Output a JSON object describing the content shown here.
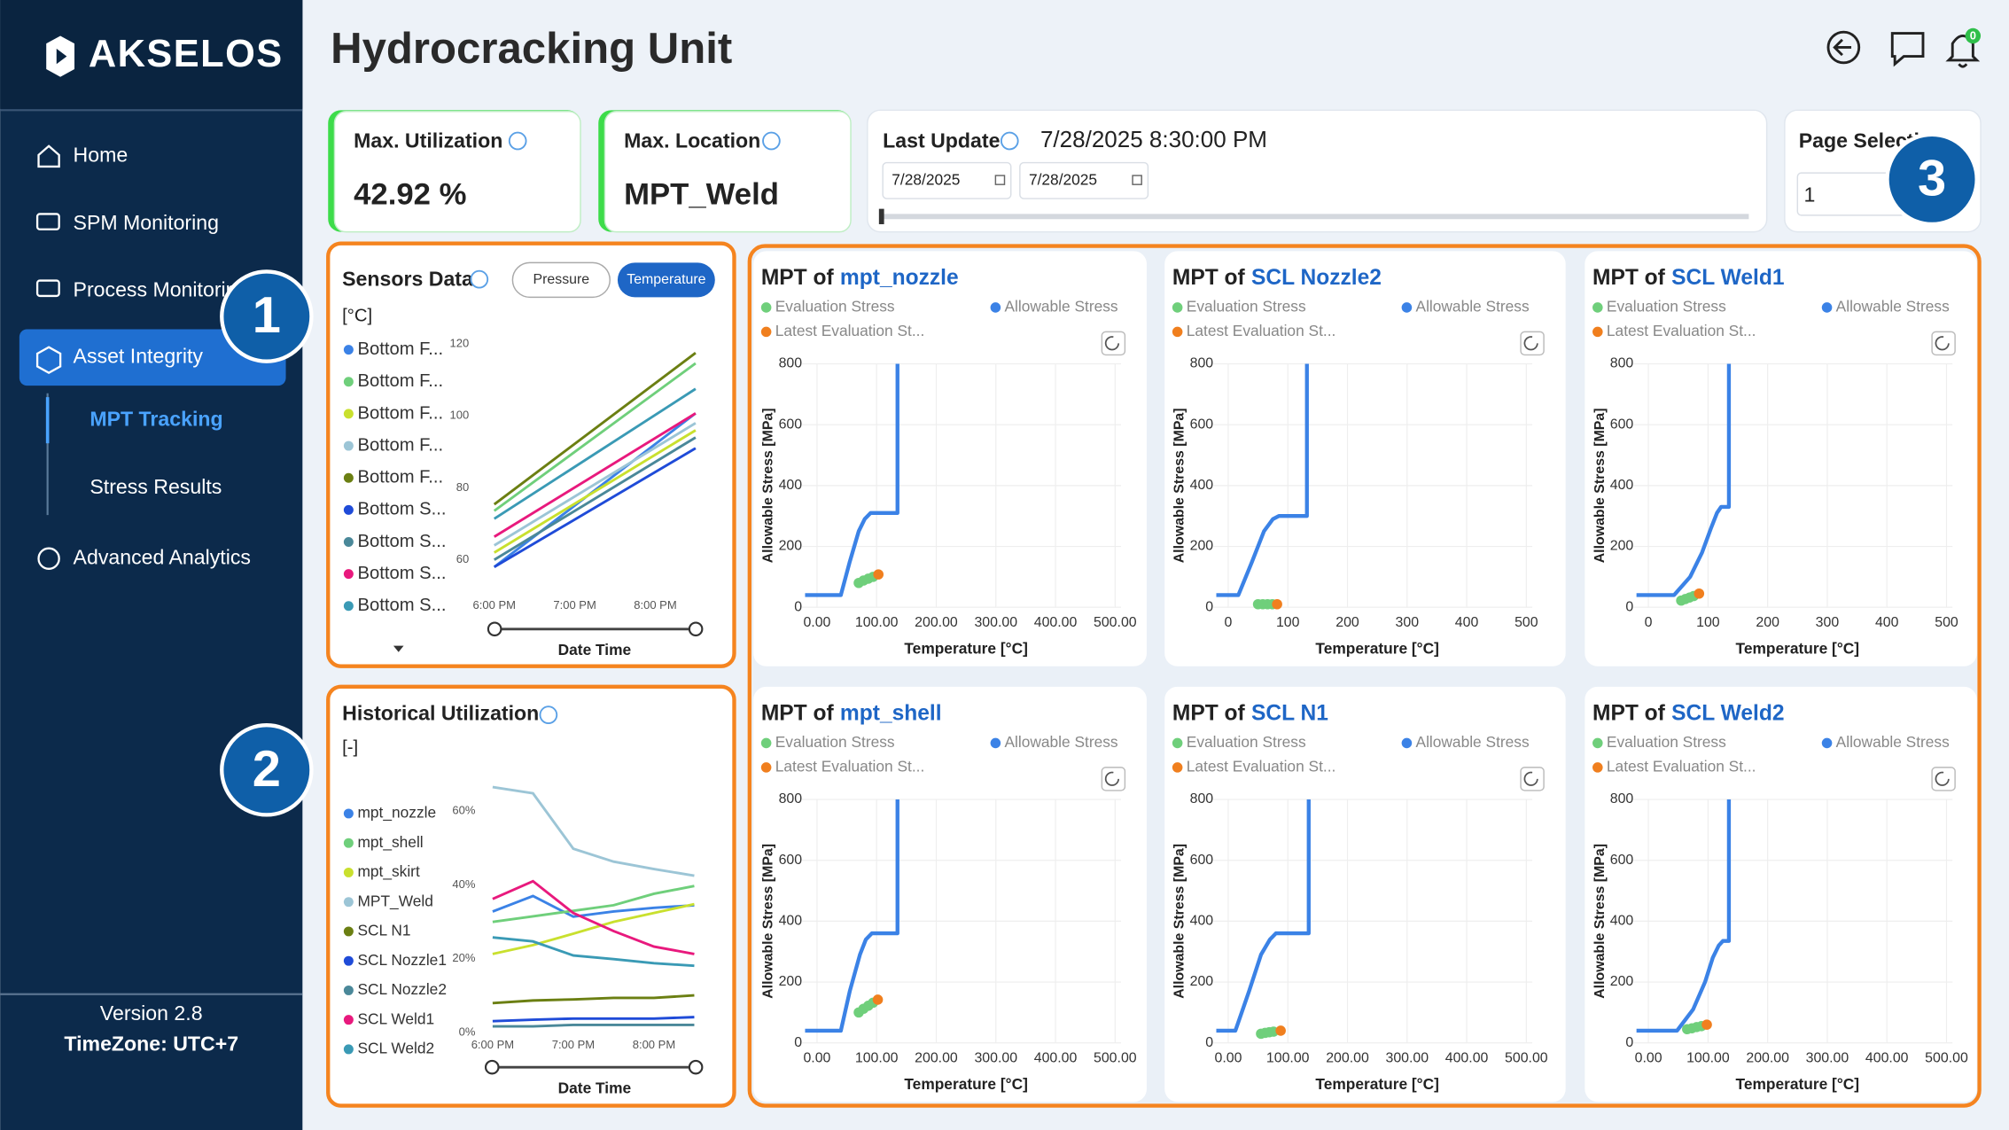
{
  "brand": "AKSELOS",
  "nav": [
    "Home",
    "SPM Monitoring",
    "Process Monitoring",
    "Asset Integrity",
    "MPT Tracking",
    "Stress Results",
    "Advanced Analytics"
  ],
  "version": "Version 2.8",
  "timezone": "TimeZone: UTC+7",
  "title": "Hydrocracking Unit",
  "notifications": "0",
  "kpis": [
    {
      "label": "Max. Utilization",
      "value": "42.92 %"
    },
    {
      "label": "Max. Location",
      "value": "MPT_Weld"
    }
  ],
  "last_update": {
    "label": "Last Update",
    "value": "7/28/2025 8:30:00 PM",
    "from": "7/28/2025",
    "to": "7/28/2025"
  },
  "page_selection": {
    "label": "Page Selection",
    "value": "1"
  },
  "badges": [
    "1",
    "2",
    "3"
  ],
  "sensors": {
    "title": "Sensors Data",
    "toggle": [
      "Pressure",
      "Temperature"
    ],
    "unit": "[°C]",
    "x_label": "Date Time",
    "xlim": [
      17.75,
      20.55
    ],
    "xticks": [
      {
        "value": 18,
        "label": "6:00 PM"
      },
      {
        "value": 19,
        "label": "7:00 PM"
      },
      {
        "value": 20,
        "label": "8:00 PM"
      }
    ],
    "ylim": [
      50,
      123
    ],
    "yticks": [
      60,
      80,
      100,
      120
    ],
    "x": [
      18,
      20.5
    ],
    "series": [
      {
        "name": "Bottom F...",
        "color": "#3b82e6",
        "values": [
          58,
          100.7
        ]
      },
      {
        "name": "Bottom F...",
        "color": "#6fcf7b",
        "values": [
          73.6,
          114.6
        ]
      },
      {
        "name": "Bottom F...",
        "color": "#c9e02e",
        "values": [
          62,
          96
        ]
      },
      {
        "name": "Bottom F...",
        "color": "#9cc5d6",
        "values": [
          64,
          98
        ]
      },
      {
        "name": "Bottom F...",
        "color": "#6b7f12",
        "values": [
          75.4,
          117.5
        ]
      },
      {
        "name": "Bottom S...",
        "color": "#1f4bd8",
        "values": [
          58,
          91
        ]
      },
      {
        "name": "Bottom S...",
        "color": "#4a8899",
        "values": [
          60,
          94
        ]
      },
      {
        "name": "Bottom S...",
        "color": "#e8197d",
        "values": [
          66.4,
          100.7
        ]
      },
      {
        "name": "Bottom S...",
        "color": "#3a9ab5",
        "values": [
          71.4,
          107.5
        ]
      }
    ]
  },
  "historical": {
    "title": "Historical Utilization",
    "unit": "[-]",
    "x_label": "Date Time",
    "xlim": [
      17.85,
      20.55
    ],
    "xticks": [
      {
        "value": 18,
        "label": "6:00 PM"
      },
      {
        "value": 19,
        "label": "7:00 PM"
      },
      {
        "value": 20,
        "label": "8:00 PM"
      }
    ],
    "ylim": [
      0,
      68
    ],
    "yticks": [
      {
        "value": 0,
        "label": "0%"
      },
      {
        "value": 20,
        "label": "20%"
      },
      {
        "value": 40,
        "label": "40%"
      },
      {
        "value": 60,
        "label": "60%"
      }
    ],
    "x": [
      18,
      18.5,
      19,
      19.5,
      20,
      20.5
    ],
    "series": [
      {
        "name": "mpt_nozzle",
        "color": "#3b82e6",
        "values": [
          32.8,
          37,
          31.4,
          32.8,
          33.8,
          34.5
        ]
      },
      {
        "name": "mpt_shell",
        "color": "#6fcf7b",
        "values": [
          30,
          31.5,
          33,
          34.5,
          37.6,
          39.7
        ]
      },
      {
        "name": "mpt_skirt",
        "color": "#c9e02e",
        "values": [
          21.3,
          23.7,
          26.8,
          30,
          32.4,
          34.8
        ]
      },
      {
        "name": "MPT_Weld",
        "color": "#9cc5d6",
        "values": [
          66.5,
          64.8,
          49.8,
          46.3,
          44.3,
          42.5
        ]
      },
      {
        "name": "SCL N1",
        "color": "#6b7f12",
        "values": [
          8,
          8.7,
          9,
          9.4,
          9.4,
          10.1
        ]
      },
      {
        "name": "SCL Nozzle1",
        "color": "#1f4bd8",
        "values": [
          3.1,
          3.5,
          3.8,
          3.8,
          3.8,
          4.2
        ]
      },
      {
        "name": "SCL Nozzle2",
        "color": "#4a8899",
        "values": [
          1.7,
          1.7,
          2.1,
          2.1,
          2.1,
          2.1
        ]
      },
      {
        "name": "SCL Weld1",
        "color": "#e8197d",
        "values": [
          36.2,
          41,
          32.4,
          27.5,
          23.3,
          21.3
        ]
      },
      {
        "name": "SCL Weld2",
        "color": "#3a9ab5",
        "values": [
          25.8,
          24.7,
          20.9,
          19.9,
          18.8,
          18.1
        ]
      }
    ]
  },
  "mpt": {
    "title_prefix": "MPT of",
    "legend": [
      "Evaluation Stress",
      "Allowable Stress",
      "Latest Evaluation St..."
    ],
    "colors": [
      "#6fcf7b",
      "#3b82e6",
      "#f07f1e"
    ],
    "x_label": "Temperature [°C]",
    "y_label": "Allowable Stress [MPa]",
    "xlim": [
      -25,
      510
    ],
    "ylim": [
      0,
      800
    ],
    "yticks": [
      0,
      200,
      400,
      600,
      800
    ],
    "panels": [
      {
        "name": "mpt_nozzle",
        "xticks": [
          {
            "value": 0,
            "label": "0.00"
          },
          {
            "value": 100,
            "label": "100.00"
          },
          {
            "value": 200,
            "label": "200.00"
          },
          {
            "value": 300,
            "label": "300.00"
          },
          {
            "value": 400,
            "label": "400.00"
          },
          {
            "value": 500,
            "label": "500.00"
          }
        ],
        "allowable": {
          "x": [
            -20,
            40,
            55,
            70,
            80,
            90,
            135,
            135
          ],
          "y": [
            40,
            40,
            150,
            250,
            290,
            310,
            310,
            800
          ]
        },
        "evaluation": {
          "x": [
            70,
            78,
            86,
            94
          ],
          "y": [
            80,
            88,
            94,
            100
          ]
        },
        "latest": {
          "x": [
            103
          ],
          "y": [
            108
          ]
        }
      },
      {
        "name": "SCL Nozzle2",
        "xticks": [
          0,
          100,
          200,
          300,
          400,
          500
        ],
        "allowable": {
          "x": [
            -20,
            17,
            40,
            60,
            75,
            85,
            132,
            132
          ],
          "y": [
            40,
            40,
            150,
            250,
            290,
            300,
            300,
            800
          ]
        },
        "evaluation": {
          "x": [
            50,
            58,
            66,
            74
          ],
          "y": [
            10,
            10,
            10,
            10
          ]
        },
        "latest": {
          "x": [
            82
          ],
          "y": [
            10
          ]
        }
      },
      {
        "name": "SCL Weld1",
        "xticks": [
          0,
          100,
          200,
          300,
          400,
          500
        ],
        "allowable": {
          "x": [
            -20,
            43,
            70,
            90,
            105,
            115,
            122,
            135,
            135
          ],
          "y": [
            40,
            40,
            100,
            180,
            260,
            310,
            330,
            330,
            800
          ]
        },
        "evaluation": {
          "x": [
            55,
            62,
            69,
            76
          ],
          "y": [
            22,
            27,
            32,
            37
          ]
        },
        "latest": {
          "x": [
            85
          ],
          "y": [
            45
          ]
        }
      },
      {
        "name": "mpt_shell",
        "xticks": [
          {
            "value": 0,
            "label": "0.00"
          },
          {
            "value": 100,
            "label": "100.00"
          },
          {
            "value": 200,
            "label": "200.00"
          },
          {
            "value": 300,
            "label": "300.00"
          },
          {
            "value": 400,
            "label": "400.00"
          },
          {
            "value": 500,
            "label": "500.00"
          }
        ],
        "allowable": {
          "x": [
            -20,
            40,
            55,
            72,
            82,
            92,
            135,
            135
          ],
          "y": [
            40,
            40,
            170,
            290,
            340,
            360,
            360,
            800
          ]
        },
        "evaluation": {
          "x": [
            70,
            78,
            86,
            94
          ],
          "y": [
            100,
            112,
            122,
            132
          ]
        },
        "latest": {
          "x": [
            102
          ],
          "y": [
            142
          ]
        }
      },
      {
        "name": "SCL N1",
        "xticks": [
          {
            "value": 0,
            "label": "0.00"
          },
          {
            "value": 100,
            "label": "100.00"
          },
          {
            "value": 200,
            "label": "200.00"
          },
          {
            "value": 300,
            "label": "300.00"
          },
          {
            "value": 400,
            "label": "400.00"
          },
          {
            "value": 500,
            "label": "500.00"
          }
        ],
        "allowable": {
          "x": [
            -20,
            12,
            35,
            55,
            70,
            80,
            135,
            135
          ],
          "y": [
            40,
            40,
            170,
            290,
            340,
            360,
            360,
            800
          ]
        },
        "evaluation": {
          "x": [
            55,
            62,
            69,
            76
          ],
          "y": [
            30,
            33,
            35,
            37
          ]
        },
        "latest": {
          "x": [
            88
          ],
          "y": [
            40
          ]
        }
      },
      {
        "name": "SCL Weld2",
        "xticks": [
          {
            "value": 0,
            "label": "0.00"
          },
          {
            "value": 100,
            "label": "100.00"
          },
          {
            "value": 200,
            "label": "200.00"
          },
          {
            "value": 300,
            "label": "300.00"
          },
          {
            "value": 400,
            "label": "400.00"
          },
          {
            "value": 500,
            "label": "500.00"
          }
        ],
        "allowable": {
          "x": [
            -20,
            48,
            75,
            95,
            108,
            118,
            125,
            135,
            135
          ],
          "y": [
            40,
            40,
            110,
            200,
            280,
            320,
            335,
            335,
            800
          ]
        },
        "evaluation": {
          "x": [
            65,
            73,
            81,
            89
          ],
          "y": [
            45,
            48,
            52,
            55
          ]
        },
        "latest": {
          "x": [
            98
          ],
          "y": [
            60
          ]
        }
      }
    ]
  }
}
